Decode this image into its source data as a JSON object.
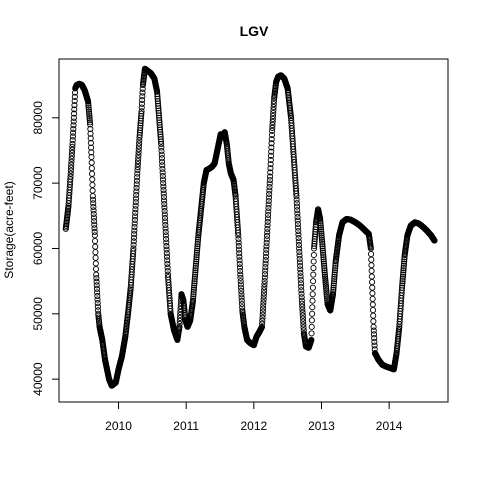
{
  "chart_data": {
    "type": "scatter",
    "title": "LGV",
    "xlabel": "",
    "ylabel": "Storage(acre-feet)",
    "xlim": [
      2009.12,
      2014.87
    ],
    "ylim": [
      36500,
      89000
    ],
    "x_ticks": [
      2010,
      2011,
      2012,
      2013,
      2014
    ],
    "x_tick_labels": [
      "2010",
      "2011",
      "2012",
      "2013",
      "2014"
    ],
    "y_ticks": [
      40000,
      50000,
      60000,
      70000,
      80000
    ],
    "y_tick_labels": [
      "40000",
      "50000",
      "60000",
      "70000",
      "80000"
    ],
    "grid": false,
    "marker": "open-circle",
    "series": [
      {
        "points": [
          [
            2009.22,
            63000
          ],
          [
            2009.26,
            66500
          ],
          [
            2009.29,
            71000
          ],
          [
            2009.32,
            76000
          ],
          [
            2009.34,
            80000
          ],
          [
            2009.36,
            84500
          ],
          [
            2009.38,
            85000
          ],
          [
            2009.42,
            85200
          ],
          [
            2009.46,
            85000
          ],
          [
            2009.5,
            84200
          ],
          [
            2009.55,
            82500
          ],
          [
            2009.58,
            79000
          ],
          [
            2009.6,
            74000
          ],
          [
            2009.62,
            68000
          ],
          [
            2009.65,
            62000
          ],
          [
            2009.67,
            56000
          ],
          [
            2009.7,
            50000
          ],
          [
            2009.72,
            48000
          ],
          [
            2009.76,
            46000
          ],
          [
            2009.8,
            43000
          ],
          [
            2009.86,
            40000
          ],
          [
            2009.9,
            39000
          ],
          [
            2009.96,
            39500
          ],
          [
            2010.0,
            41500
          ],
          [
            2010.05,
            43500
          ],
          [
            2010.1,
            46500
          ],
          [
            2010.14,
            50000
          ],
          [
            2010.18,
            54000
          ],
          [
            2010.22,
            60000
          ],
          [
            2010.25,
            66000
          ],
          [
            2010.28,
            72000
          ],
          [
            2010.31,
            77000
          ],
          [
            2010.34,
            81000
          ],
          [
            2010.36,
            85000
          ],
          [
            2010.39,
            87500
          ],
          [
            2010.43,
            87200
          ],
          [
            2010.48,
            86800
          ],
          [
            2010.53,
            86000
          ],
          [
            2010.57,
            84000
          ],
          [
            2010.6,
            80000
          ],
          [
            2010.63,
            76000
          ],
          [
            2010.66,
            70000
          ],
          [
            2010.7,
            62000
          ],
          [
            2010.73,
            56000
          ],
          [
            2010.77,
            50000
          ],
          [
            2010.82,
            47500
          ],
          [
            2010.87,
            46000
          ],
          [
            2010.9,
            48000
          ],
          [
            2010.93,
            53000
          ],
          [
            2010.96,
            52000
          ],
          [
            2010.99,
            49000
          ],
          [
            2011.02,
            48000
          ],
          [
            2011.06,
            49000
          ],
          [
            2011.1,
            52000
          ],
          [
            2011.14,
            57000
          ],
          [
            2011.18,
            62000
          ],
          [
            2011.22,
            66000
          ],
          [
            2011.26,
            70000
          ],
          [
            2011.3,
            72000
          ],
          [
            2011.34,
            72200
          ],
          [
            2011.38,
            72500
          ],
          [
            2011.42,
            73000
          ],
          [
            2011.45,
            74500
          ],
          [
            2011.48,
            76000
          ],
          [
            2011.51,
            77500
          ],
          [
            2011.54,
            77000
          ],
          [
            2011.57,
            77800
          ],
          [
            2011.6,
            76000
          ],
          [
            2011.63,
            73000
          ],
          [
            2011.66,
            71500
          ],
          [
            2011.7,
            70500
          ],
          [
            2011.73,
            68000
          ],
          [
            2011.77,
            62000
          ],
          [
            2011.8,
            56000
          ],
          [
            2011.83,
            50500
          ],
          [
            2011.86,
            48000
          ],
          [
            2011.9,
            46000
          ],
          [
            2011.95,
            45500
          ],
          [
            2012.0,
            45200
          ],
          [
            2012.04,
            46500
          ],
          [
            2012.08,
            47200
          ],
          [
            2012.12,
            48000
          ],
          [
            2012.16,
            55000
          ],
          [
            2012.2,
            63000
          ],
          [
            2012.24,
            71000
          ],
          [
            2012.27,
            78000
          ],
          [
            2012.3,
            83000
          ],
          [
            2012.33,
            85500
          ],
          [
            2012.36,
            86300
          ],
          [
            2012.4,
            86500
          ],
          [
            2012.45,
            86000
          ],
          [
            2012.5,
            84500
          ],
          [
            2012.55,
            80000
          ],
          [
            2012.59,
            74000
          ],
          [
            2012.63,
            68000
          ],
          [
            2012.67,
            60000
          ],
          [
            2012.71,
            52000
          ],
          [
            2012.74,
            47000
          ],
          [
            2012.77,
            45000
          ],
          [
            2012.81,
            44800
          ],
          [
            2012.85,
            46000
          ],
          [
            2012.87,
            53000
          ],
          [
            2012.89,
            60000
          ],
          [
            2012.92,
            64000
          ],
          [
            2012.95,
            66000
          ],
          [
            2012.98,
            64500
          ],
          [
            2013.01,
            61000
          ],
          [
            2013.05,
            56000
          ],
          [
            2013.09,
            51500
          ],
          [
            2013.13,
            50500
          ],
          [
            2013.17,
            53000
          ],
          [
            2013.21,
            58000
          ],
          [
            2013.26,
            62000
          ],
          [
            2013.31,
            64000
          ],
          [
            2013.37,
            64500
          ],
          [
            2013.43,
            64400
          ],
          [
            2013.5,
            64000
          ],
          [
            2013.57,
            63500
          ],
          [
            2013.64,
            62800
          ],
          [
            2013.7,
            62200
          ],
          [
            2013.73,
            60000
          ],
          [
            2013.75,
            54000
          ],
          [
            2013.77,
            48000
          ],
          [
            2013.79,
            44000
          ],
          [
            2013.84,
            43000
          ],
          [
            2013.9,
            42200
          ],
          [
            2013.96,
            41900
          ],
          [
            2014.02,
            41700
          ],
          [
            2014.07,
            41500
          ],
          [
            2014.11,
            44000
          ],
          [
            2014.15,
            48000
          ],
          [
            2014.19,
            54000
          ],
          [
            2014.23,
            59000
          ],
          [
            2014.27,
            62000
          ],
          [
            2014.32,
            63500
          ],
          [
            2014.38,
            64000
          ],
          [
            2014.44,
            63800
          ],
          [
            2014.5,
            63300
          ],
          [
            2014.56,
            62700
          ],
          [
            2014.62,
            62000
          ],
          [
            2014.67,
            61200
          ]
        ]
      }
    ]
  }
}
